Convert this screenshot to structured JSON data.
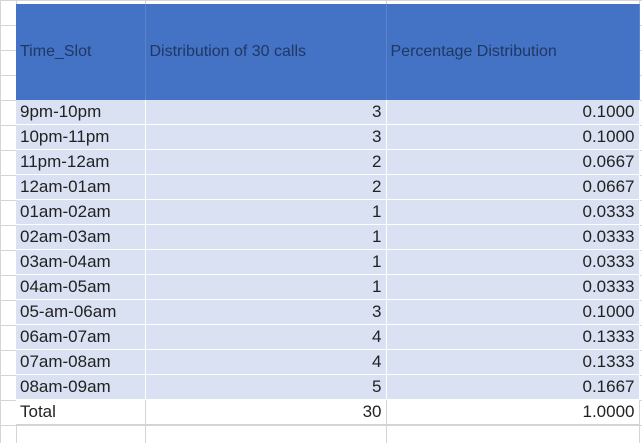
{
  "columns": [
    "Time_Slot",
    "Distribution of 30 calls",
    "Percentage Distribution"
  ],
  "rows": [
    [
      "9pm-10pm",
      "3",
      "0.1000"
    ],
    [
      "10pm-11pm",
      "3",
      "0.1000"
    ],
    [
      "11pm-12am",
      "2",
      "0.0667"
    ],
    [
      "12am-01am",
      "2",
      "0.0667"
    ],
    [
      "01am-02am",
      "1",
      "0.0333"
    ],
    [
      "02am-03am",
      "1",
      "0.0333"
    ],
    [
      "03am-04am",
      "1",
      "0.0333"
    ],
    [
      "04am-05am",
      "1",
      "0.0333"
    ],
    [
      "05-am-06am",
      "3",
      "0.1000"
    ],
    [
      "06am-07am",
      "4",
      "0.1333"
    ],
    [
      "07am-08am",
      "4",
      "0.1333"
    ],
    [
      "08am-09am",
      "5",
      "0.1667"
    ]
  ],
  "total": [
    "Total",
    "30",
    "1.0000"
  ],
  "colors": {
    "header_bg": "#4472c4",
    "header_text": "#1f3864",
    "row_bg": "#d9e1f2"
  }
}
